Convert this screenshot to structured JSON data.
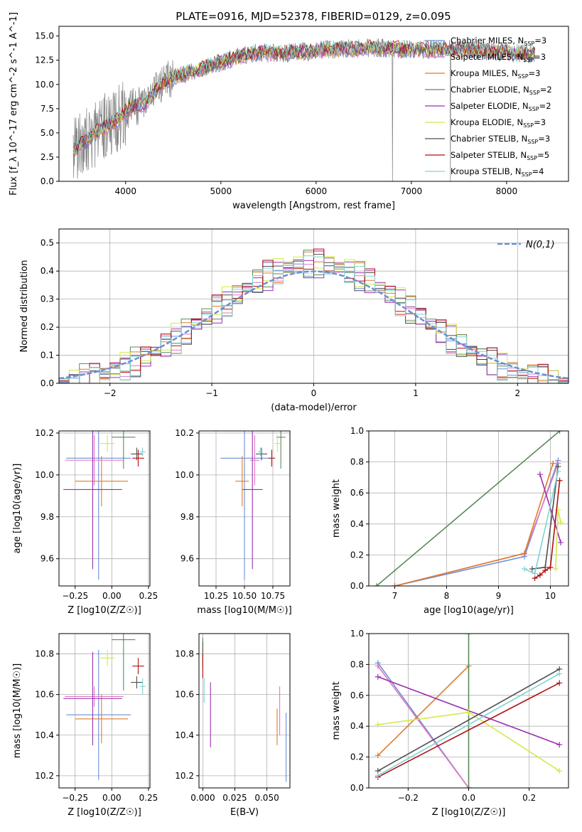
{
  "title": "PLATE=0916, MJD=52378, FIBERID=0129, z=0.095",
  "colors": {
    "chabrier_miles": "#6a8fd8",
    "salpeter_miles": "#e377c2",
    "kroupa_miles": "#e07b2a",
    "chabrier_elodie": "#5b8a5b",
    "salpeter_elodie": "#9b30b0",
    "kroupa_elodie": "#d4e84a",
    "chabrier_stelib": "#505050",
    "salpeter_stelib": "#b01010",
    "kroupa_stelib": "#7fd3d3",
    "data": "#7f7f7f",
    "grid": "#b0b0b0"
  },
  "chart_data": [
    {
      "id": "spectrum",
      "type": "line",
      "title": "PLATE=0916, MJD=52378, FIBERID=0129, z=0.095",
      "xlabel": "wavelength [Angstrom, rest frame]",
      "ylabel": "Flux [f_λ 10^-17 erg cm^-2 s^-1 A^-1]",
      "xlim": [
        3300,
        8650
      ],
      "ylim": [
        0,
        16
      ],
      "xticks": [
        4000,
        5000,
        6000,
        7000,
        8000
      ],
      "yticks": [
        0.0,
        2.5,
        5.0,
        7.5,
        10.0,
        12.5,
        15.0
      ],
      "grid": false,
      "legend_position": "right",
      "continuum": {
        "x": [
          3450,
          3600,
          3750,
          3900,
          4050,
          4200,
          4400,
          4600,
          4800,
          5000,
          5200,
          5400,
          5600,
          5800,
          6000,
          6200,
          6400,
          6600,
          6800,
          7000,
          7200,
          7400,
          7700,
          8000,
          8300
        ],
        "y": [
          3.2,
          4.3,
          5.5,
          6.2,
          7.6,
          8.0,
          10.3,
          11.0,
          11.6,
          12.3,
          12.9,
          13.3,
          13.2,
          13.3,
          13.5,
          13.6,
          13.7,
          13.8,
          13.7,
          13.6,
          13.6,
          13.6,
          13.5,
          13.3,
          13.1
        ]
      },
      "legend": [
        {
          "label": "Chabrier MILES",
          "nssp": "3",
          "color_key": "chabrier_miles"
        },
        {
          "label": "Salpeter MILES",
          "nssp": "3",
          "color_key": "salpeter_miles"
        },
        {
          "label": "Kroupa MILES",
          "nssp": "3",
          "color_key": "kroupa_miles"
        },
        {
          "label": "Chabrier ELODIE",
          "nssp": "2",
          "color_key": "chabrier_elodie"
        },
        {
          "label": "Salpeter ELODIE",
          "nssp": "2",
          "color_key": "salpeter_elodie"
        },
        {
          "label": "Kroupa ELODIE",
          "nssp": "3",
          "color_key": "kroupa_elodie"
        },
        {
          "label": "Chabrier STELIB",
          "nssp": "3",
          "color_key": "chabrier_stelib"
        },
        {
          "label": "Salpeter STELIB",
          "nssp": "5",
          "color_key": "salpeter_stelib"
        },
        {
          "label": "Kroupa STELIB",
          "nssp": "4",
          "color_key": "kroupa_stelib"
        }
      ]
    },
    {
      "id": "residuals",
      "type": "line",
      "xlabel": "(data-model)/error",
      "ylabel": "Normed distribution",
      "xlim": [
        -2.5,
        2.5
      ],
      "ylim": [
        0,
        0.55
      ],
      "xticks": [
        -2,
        -1,
        0,
        1,
        2
      ],
      "yticks": [
        0.0,
        0.1,
        0.2,
        0.3,
        0.4,
        0.5
      ],
      "grid": true,
      "legend_position": "top-right",
      "legend_label": "N(0,1)",
      "gaussian": {
        "mu": 0,
        "sigma": 1
      }
    },
    {
      "id": "age_vs_z",
      "type": "scatter",
      "xlabel": "Z [log10(Z/Z☉)]",
      "ylabel": "age [log10(age/yr)]",
      "xlim": [
        -0.36,
        0.26
      ],
      "ylim": [
        9.47,
        10.21
      ],
      "xticks": [
        -0.25,
        0.0,
        0.25
      ],
      "yticks": [
        9.6,
        9.8,
        10.0,
        10.2
      ],
      "grid": true,
      "points": [
        {
          "model": "chabrier_miles",
          "x": -0.09,
          "xerr": 0.22,
          "y": 10.08,
          "yerr": 0.58
        },
        {
          "model": "salpeter_miles",
          "x": -0.12,
          "xerr": 0.2,
          "y": 10.07,
          "yerr": 0.12
        },
        {
          "model": "kroupa_miles",
          "x": -0.07,
          "xerr": 0.18,
          "y": 9.97,
          "yerr": 0.12
        },
        {
          "model": "chabrier_elodie",
          "x": 0.08,
          "xerr": 0.08,
          "y": 10.18,
          "yerr": 0.15
        },
        {
          "model": "salpeter_elodie",
          "x": -0.13,
          "xerr": 0.2,
          "y": 9.93,
          "yerr": 0.38
        },
        {
          "model": "kroupa_elodie",
          "x": -0.03,
          "xerr": 0.05,
          "y": 10.15,
          "yerr": 0.04
        },
        {
          "model": "chabrier_stelib",
          "x": 0.17,
          "xerr": 0.04,
          "y": 10.1,
          "yerr": 0.03
        },
        {
          "model": "salpeter_stelib",
          "x": 0.18,
          "xerr": 0.04,
          "y": 10.08,
          "yerr": 0.04
        },
        {
          "model": "kroupa_stelib",
          "x": 0.21,
          "xerr": 0.02,
          "y": 10.11,
          "yerr": 0.02
        }
      ]
    },
    {
      "id": "age_vs_mass",
      "type": "scatter",
      "xlabel": "mass [log10(M/M☉)]",
      "ylabel": "",
      "xlim": [
        10.1,
        10.9
      ],
      "ylim": [
        9.47,
        10.21
      ],
      "xticks": [
        10.25,
        10.5,
        10.75
      ],
      "yticks": [
        9.6,
        9.8,
        10.0,
        10.2
      ],
      "grid": true,
      "points": [
        {
          "model": "chabrier_miles",
          "x": 10.5,
          "xerr": 0.21,
          "y": 10.08,
          "yerr": 0.58
        },
        {
          "model": "salpeter_miles",
          "x": 10.59,
          "xerr": 0.04,
          "y": 10.07,
          "yerr": 0.12
        },
        {
          "model": "kroupa_miles",
          "x": 10.48,
          "xerr": 0.06,
          "y": 9.97,
          "yerr": 0.12
        },
        {
          "model": "chabrier_elodie",
          "x": 10.82,
          "xerr": 0.04,
          "y": 10.18,
          "yerr": 0.15
        },
        {
          "model": "salpeter_elodie",
          "x": 10.57,
          "xerr": 0.09,
          "y": 9.93,
          "yerr": 0.38
        },
        {
          "model": "kroupa_elodie",
          "x": 10.79,
          "xerr": 0.03,
          "y": 10.15,
          "yerr": 0.04
        },
        {
          "model": "chabrier_stelib",
          "x": 10.65,
          "xerr": 0.05,
          "y": 10.1,
          "yerr": 0.03
        },
        {
          "model": "salpeter_stelib",
          "x": 10.74,
          "xerr": 0.03,
          "y": 10.08,
          "yerr": 0.04
        },
        {
          "model": "kroupa_stelib",
          "x": 10.64,
          "xerr": 0.02,
          "y": 10.11,
          "yerr": 0.02
        }
      ]
    },
    {
      "id": "weight_vs_age",
      "type": "line",
      "xlabel": "age [log10(age/yr)]",
      "ylabel": "mass weight",
      "xlim": [
        6.5,
        10.35
      ],
      "ylim": [
        0,
        1.0
      ],
      "xticks": [
        7,
        8,
        9,
        10
      ],
      "yticks": [
        0.0,
        0.2,
        0.4,
        0.6,
        0.8,
        1.0
      ],
      "grid": true,
      "series": [
        {
          "model": "chabrier_miles",
          "x": [
            7.0,
            9.5,
            10.15
          ],
          "y": [
            0.0,
            0.19,
            0.81
          ]
        },
        {
          "model": "salpeter_miles",
          "x": [
            7.0,
            9.5,
            10.15
          ],
          "y": [
            0.0,
            0.21,
            0.79
          ]
        },
        {
          "model": "kroupa_miles",
          "x": [
            7.0,
            9.5,
            10.05
          ],
          "y": [
            0.0,
            0.21,
            0.79
          ]
        },
        {
          "model": "chabrier_elodie",
          "x": [
            6.65,
            10.18
          ],
          "y": [
            0.0,
            1.0
          ]
        },
        {
          "model": "salpeter_elodie",
          "x": [
            9.8,
            10.2
          ],
          "y": [
            0.72,
            0.28
          ]
        },
        {
          "model": "kroupa_elodie",
          "x": [
            10.1,
            10.15,
            10.2
          ],
          "y": [
            0.11,
            0.49,
            0.41
          ]
        },
        {
          "model": "chabrier_stelib",
          "x": [
            9.65,
            9.9,
            10.15
          ],
          "y": [
            0.11,
            0.12,
            0.77
          ]
        },
        {
          "model": "salpeter_stelib",
          "x": [
            9.7,
            9.8,
            9.9,
            10.0,
            10.18
          ],
          "y": [
            0.05,
            0.07,
            0.1,
            0.12,
            0.68
          ]
        },
        {
          "model": "kroupa_stelib",
          "x": [
            9.5,
            9.7,
            10.15
          ],
          "y": [
            0.11,
            0.08,
            0.74
          ]
        }
      ]
    },
    {
      "id": "mass_vs_z",
      "type": "scatter",
      "xlabel": "Z [log10(Z/Z☉)]",
      "ylabel": "mass [log10(M/M☉)]",
      "xlim": [
        -0.36,
        0.26
      ],
      "ylim": [
        10.14,
        10.9
      ],
      "xticks": [
        -0.25,
        0.0,
        0.25
      ],
      "yticks": [
        10.2,
        10.4,
        10.6,
        10.8
      ],
      "grid": true,
      "points": [
        {
          "model": "chabrier_miles",
          "x": -0.09,
          "xerr": 0.22,
          "y": 10.5,
          "yerr": 0.32
        },
        {
          "model": "salpeter_miles",
          "x": -0.12,
          "xerr": 0.2,
          "y": 10.59,
          "yerr": 0.05
        },
        {
          "model": "kroupa_miles",
          "x": -0.07,
          "xerr": 0.18,
          "y": 10.48,
          "yerr": 0.12
        },
        {
          "model": "chabrier_elodie",
          "x": 0.08,
          "xerr": 0.08,
          "y": 10.87,
          "yerr": 0.25
        },
        {
          "model": "salpeter_elodie",
          "x": -0.13,
          "xerr": 0.2,
          "y": 10.58,
          "yerr": 0.23
        },
        {
          "model": "kroupa_elodie",
          "x": -0.03,
          "xerr": 0.05,
          "y": 10.78,
          "yerr": 0.04
        },
        {
          "model": "chabrier_stelib",
          "x": 0.17,
          "xerr": 0.04,
          "y": 10.66,
          "yerr": 0.03
        },
        {
          "model": "salpeter_stelib",
          "x": 0.18,
          "xerr": 0.04,
          "y": 10.74,
          "yerr": 0.04
        },
        {
          "model": "kroupa_stelib",
          "x": 0.21,
          "xerr": 0.02,
          "y": 10.64,
          "yerr": 0.04
        }
      ]
    },
    {
      "id": "mass_vs_ebv",
      "type": "scatter",
      "xlabel": "E(B-V)",
      "ylabel": "",
      "xlim": [
        -0.003,
        0.068
      ],
      "ylim": [
        10.14,
        10.9
      ],
      "xticks": [
        0.0,
        0.025,
        0.05
      ],
      "yticks": [
        10.2,
        10.4,
        10.6,
        10.8
      ],
      "grid": true,
      "points": [
        {
          "model": "chabrier_miles",
          "x": 0.065,
          "xerr": 0,
          "y": 10.34,
          "yerr": 0.17
        },
        {
          "model": "salpeter_miles",
          "x": 0.06,
          "xerr": 0,
          "y": 10.52,
          "yerr": 0.12
        },
        {
          "model": "kroupa_miles",
          "x": 0.058,
          "xerr": 0,
          "y": 10.44,
          "yerr": 0.09
        },
        {
          "model": "chabrier_elodie",
          "x": 0.0,
          "xerr": 0,
          "y": 10.8,
          "yerr": 0.08
        },
        {
          "model": "salpeter_elodie",
          "x": 0.006,
          "xerr": 0,
          "y": 10.5,
          "yerr": 0.16
        },
        {
          "model": "kroupa_elodie",
          "x": 0.0,
          "xerr": 0,
          "y": 10.78,
          "yerr": 0.06
        },
        {
          "model": "chabrier_stelib",
          "x": 0.0,
          "xerr": 0,
          "y": 10.8,
          "yerr": 0.06
        },
        {
          "model": "salpeter_stelib",
          "x": 0.0,
          "xerr": 0,
          "y": 10.74,
          "yerr": 0.06
        },
        {
          "model": "kroupa_stelib",
          "x": 0.001,
          "xerr": 0,
          "y": 10.62,
          "yerr": 0.06
        }
      ]
    },
    {
      "id": "weight_vs_z",
      "type": "line",
      "xlabel": "Z [log10(Z/Z☉)]",
      "ylabel": "mass weight",
      "xlim": [
        -0.33,
        0.33
      ],
      "ylim": [
        0,
        1.0
      ],
      "xticks": [
        -0.2,
        0.0,
        0.2
      ],
      "yticks": [
        0.0,
        0.2,
        0.4,
        0.6,
        0.8,
        1.0
      ],
      "grid": true,
      "series": [
        {
          "model": "chabrier_miles",
          "x": [
            -0.3,
            0.0
          ],
          "y": [
            0.81,
            0.0
          ]
        },
        {
          "model": "salpeter_miles",
          "x": [
            -0.3,
            0.0
          ],
          "y": [
            0.79,
            0.0
          ]
        },
        {
          "model": "kroupa_miles",
          "x": [
            -0.3,
            0.0
          ],
          "y": [
            0.21,
            0.79
          ]
        },
        {
          "model": "chabrier_elodie",
          "x": [
            0.0,
            0.0
          ],
          "y": [
            0.0,
            1.0
          ]
        },
        {
          "model": "salpeter_elodie",
          "x": [
            -0.3,
            0.3
          ],
          "y": [
            0.72,
            0.28
          ]
        },
        {
          "model": "kroupa_elodie",
          "x": [
            -0.3,
            0.0,
            0.3
          ],
          "y": [
            0.41,
            0.49,
            0.11
          ]
        },
        {
          "model": "chabrier_stelib",
          "x": [
            -0.3,
            0.3
          ],
          "y": [
            0.11,
            0.77
          ]
        },
        {
          "model": "salpeter_stelib",
          "x": [
            -0.3,
            0.3
          ],
          "y": [
            0.07,
            0.68
          ]
        },
        {
          "model": "kroupa_stelib",
          "x": [
            -0.3,
            0.3
          ],
          "y": [
            0.08,
            0.74
          ]
        }
      ]
    }
  ]
}
